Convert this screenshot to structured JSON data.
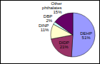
{
  "chart_data": {
    "type": "pie",
    "categories": [
      "DEHP",
      "DIDP",
      "DINP",
      "DBP",
      "Other phthalates"
    ],
    "values": [
      51,
      21,
      11,
      2,
      15
    ],
    "value_labels": [
      "51%",
      "21%",
      "11%",
      "2%",
      "15%"
    ],
    "colors": [
      "#9999ff",
      "#993366",
      "#ffffcc",
      "#ccffff",
      "#660066"
    ],
    "data_labels": true
  }
}
